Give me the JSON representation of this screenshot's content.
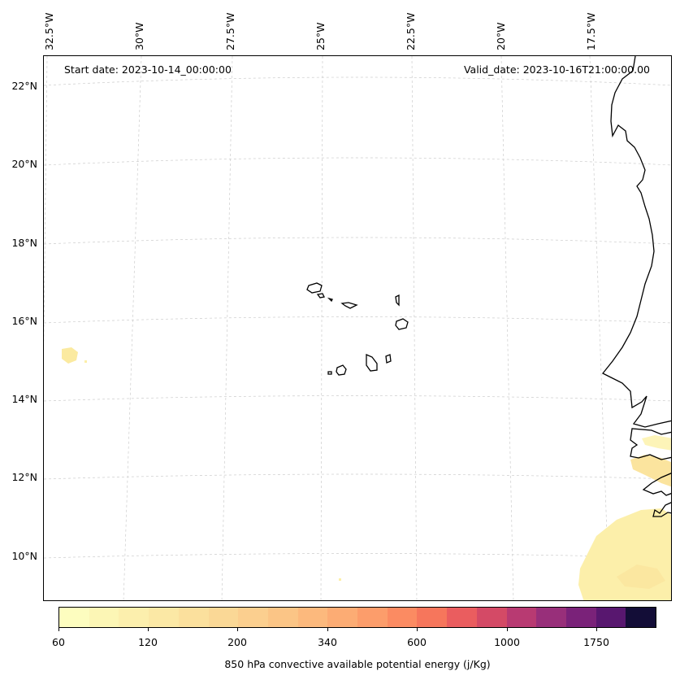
{
  "map": {
    "start_date": "Start date: 2023-10-14_00:00:00",
    "valid_date": "Valid_date: 2023-10-16T21:00:00.00",
    "lat_labels": [
      "22°N",
      "20°N",
      "18°N",
      "16°N",
      "14°N",
      "12°N",
      "10°N"
    ],
    "lon_labels": [
      "32.5°W",
      "30°W",
      "27.5°W",
      "25°W",
      "22.5°W",
      "20°W",
      "17.5°W"
    ],
    "coastline_color": "#000000",
    "gridline_color": "#cccccc",
    "field_color": "#fcefa8"
  },
  "colorbar": {
    "title": "850 hPa convective available potential energy (j/Kg)",
    "tick_labels": [
      "60",
      "120",
      "200",
      "340",
      "600",
      "1000",
      "1750"
    ],
    "colors": [
      "#fdfdbf",
      "#fcf6b5",
      "#fcefad",
      "#fbe8a5",
      "#fbe09d",
      "#fad896",
      "#fbcf8f",
      "#fbc586",
      "#fcb97d",
      "#fcac74",
      "#fc9d6b",
      "#fb8b62",
      "#f6765c",
      "#ea5d5f",
      "#d44a66",
      "#b83a72",
      "#982f7a",
      "#7a2279",
      "#58176f",
      "#130d37"
    ]
  }
}
